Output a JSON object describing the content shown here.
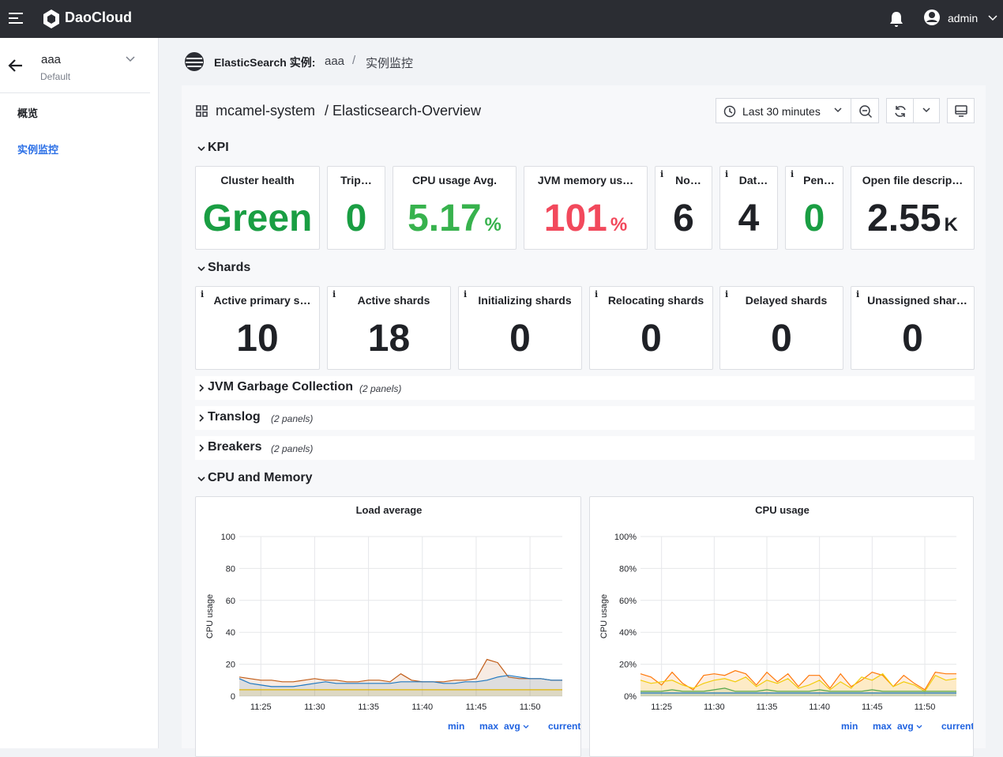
{
  "header": {
    "brand": "DaoCloud",
    "user": "admin"
  },
  "sidebar": {
    "instance": "aaa",
    "namespace": "Default",
    "nav": [
      "概览",
      "实例监控"
    ],
    "active": 1
  },
  "breadcrumb": {
    "service": "ElasticSearch 实例:",
    "instance": "aaa",
    "separator": "/",
    "page": "实例监控"
  },
  "dashboard": {
    "folder": "mcamel-system",
    "name": "/ Elasticsearch-Overview",
    "time_range": "Last 30 minutes"
  },
  "kpi": {
    "title": "KPI",
    "panels": [
      {
        "title": "Cluster health",
        "value": "Green",
        "color": "#1a9e43"
      },
      {
        "title": "Trip…",
        "value": "0",
        "color": "#1a9e43"
      },
      {
        "title": "CPU usage Avg.",
        "value": "5.17",
        "unit": "%",
        "color": "#37b24d"
      },
      {
        "title": "JVM memory us…",
        "value": "101",
        "unit": "%",
        "color": "#f2495c"
      },
      {
        "title": "No…",
        "value": "6",
        "color": "#1f2126",
        "info": true
      },
      {
        "title": "Dat…",
        "value": "4",
        "color": "#1f2126",
        "info": true
      },
      {
        "title": "Pen…",
        "value": "0",
        "color": "#1a9e43",
        "info": true
      },
      {
        "title": "Open file descrip…",
        "value": "2.55",
        "unit": "K",
        "color": "#1f2126"
      }
    ]
  },
  "shards": {
    "title": "Shards",
    "panels": [
      {
        "title": "Active primary s…",
        "value": "10",
        "info": true
      },
      {
        "title": "Active shards",
        "value": "18",
        "info": true
      },
      {
        "title": "Initializing shards",
        "value": "0",
        "info": true
      },
      {
        "title": "Relocating shards",
        "value": "0",
        "info": true
      },
      {
        "title": "Delayed shards",
        "value": "0",
        "info": true
      },
      {
        "title": "Unassigned shar…",
        "value": "0",
        "info": true
      }
    ]
  },
  "rows": [
    {
      "title": "JVM Garbage Collection",
      "count": "(2 panels)"
    },
    {
      "title": "Translog",
      "count": "(2 panels)"
    },
    {
      "title": "Breakers",
      "count": "(2 panels)"
    }
  ],
  "section": {
    "title": "CPU and Memory"
  },
  "chart_data": [
    {
      "type": "line",
      "title": "Load average",
      "y_label": "CPU usage",
      "categories": [
        null,
        null,
        "11:25",
        null,
        null,
        null,
        null,
        "11:30",
        null,
        null,
        null,
        null,
        "11:35",
        null,
        null,
        null,
        null,
        "11:40",
        null,
        null,
        null,
        null,
        "11:45",
        null,
        null,
        null,
        null,
        "11:50",
        null,
        null,
        null
      ],
      "ylim": [
        0,
        100
      ],
      "yticks": [
        0,
        20,
        40,
        60,
        80,
        100
      ],
      "grid": true,
      "legend_columns": [
        "min",
        "max",
        "avg",
        "current"
      ],
      "series": [
        {
          "color": "#c15c17",
          "values": [
            12,
            11,
            10,
            10,
            9,
            9,
            10,
            11,
            10,
            10,
            9,
            9,
            10,
            10,
            9,
            14,
            10,
            9,
            9,
            9,
            10,
            10,
            11,
            23,
            21,
            12,
            11,
            11,
            11,
            10,
            10
          ]
        },
        {
          "color": "#1f78c1",
          "values": [
            11,
            8,
            7,
            6,
            6,
            6,
            7,
            8,
            9,
            8,
            8,
            8,
            8,
            8,
            8,
            9,
            9,
            9,
            9,
            8,
            8,
            9,
            9,
            10,
            12,
            13,
            12,
            11,
            11,
            10,
            10
          ]
        },
        {
          "color": "#e0b400",
          "values": [
            4,
            4,
            4,
            4,
            4,
            4,
            4,
            4,
            4,
            4,
            4,
            4,
            4,
            4,
            4,
            4,
            4,
            4,
            4,
            4,
            4,
            4,
            4,
            4,
            4,
            4,
            4,
            4,
            4,
            4,
            4
          ]
        }
      ]
    },
    {
      "type": "line",
      "title": "CPU usage",
      "y_label": "CPU usage",
      "categories": [
        null,
        null,
        "11:25",
        null,
        null,
        null,
        null,
        "11:30",
        null,
        null,
        null,
        null,
        "11:35",
        null,
        null,
        null,
        null,
        "11:40",
        null,
        null,
        null,
        null,
        "11:45",
        null,
        null,
        null,
        null,
        "11:50",
        null,
        null,
        null
      ],
      "ylim": [
        0,
        100
      ],
      "yticks": [
        {
          "value": 0,
          "label": "0%"
        },
        {
          "value": 20,
          "label": "20%"
        },
        {
          "value": 40,
          "label": "40%"
        },
        {
          "value": 60,
          "label": "60%"
        },
        {
          "value": 80,
          "label": "80%"
        },
        {
          "value": 100,
          "label": "100%"
        }
      ],
      "grid": true,
      "legend_columns": [
        "min",
        "max",
        "avg",
        "current"
      ],
      "series": [
        {
          "color": "#ff780a",
          "values": [
            14,
            12,
            7,
            15,
            8,
            4,
            13,
            14,
            13,
            16,
            14,
            7,
            15,
            9,
            14,
            6,
            13,
            13,
            5,
            14,
            6,
            10,
            15,
            13,
            6,
            13,
            8,
            4,
            15,
            14,
            14
          ]
        },
        {
          "color": "#f2cc0c",
          "values": [
            10,
            8,
            9,
            10,
            7,
            5,
            8,
            10,
            11,
            9,
            12,
            6,
            10,
            8,
            11,
            5,
            7,
            10,
            4,
            9,
            5,
            12,
            10,
            14,
            6,
            9,
            7,
            3,
            13,
            10,
            11
          ]
        },
        {
          "color": "#56a64b",
          "values": [
            3,
            3,
            3,
            4,
            3,
            3,
            3,
            4,
            5,
            3,
            3,
            3,
            4,
            3,
            3,
            3,
            3,
            4,
            3,
            3,
            3,
            3,
            4,
            3,
            3,
            3,
            3,
            3,
            3,
            3,
            3
          ]
        },
        {
          "color": "#1f78c1",
          "values": [
            2,
            2,
            2,
            2,
            2,
            2,
            2,
            2,
            2,
            2,
            2,
            2,
            2,
            2,
            2,
            2,
            2,
            2,
            2,
            2,
            2,
            2,
            2,
            2,
            2,
            2,
            2,
            2,
            2,
            2,
            2
          ]
        }
      ]
    }
  ]
}
